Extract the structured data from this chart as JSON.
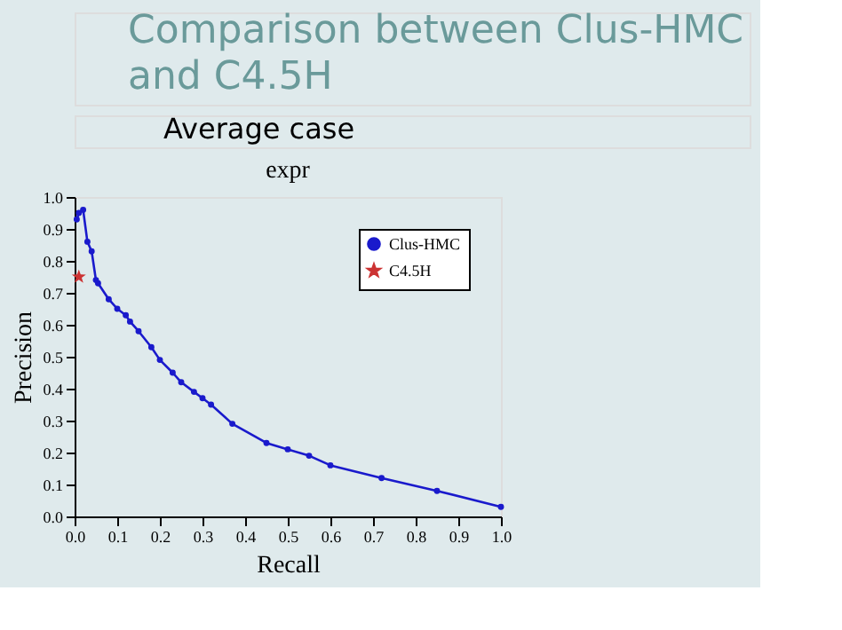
{
  "chart_data": {
    "type": "line",
    "title": "expr",
    "xlabel": "Recall",
    "ylabel": "Precision",
    "annotations": [
      "Comparison between Clus-HMC and C4.5H",
      "Average case"
    ],
    "xlim": [
      0,
      1
    ],
    "ylim": [
      0,
      1
    ],
    "xticks": [
      {
        "value": 0,
        "label": "0.0"
      },
      0.1,
      0.2,
      0.3,
      0.4,
      0.5,
      0.6,
      0.7,
      0.8,
      0.9,
      {
        "value": 1,
        "label": "1.0"
      }
    ],
    "yticks": [
      {
        "value": 0,
        "label": "0.0"
      },
      0.1,
      0.2,
      0.3,
      0.4,
      0.5,
      0.6,
      0.7,
      0.8,
      0.9,
      {
        "value": 1,
        "label": "1.0"
      }
    ],
    "grid": false,
    "legend": "top right",
    "series": [
      {
        "name": "Clus-HMC",
        "color": "#1a1acc",
        "marker": "circle",
        "x": [
          0.005,
          0.01,
          0.02,
          0.03,
          0.04,
          0.05,
          0.055,
          0.08,
          0.1,
          0.12,
          0.13,
          0.15,
          0.18,
          0.2,
          0.23,
          0.25,
          0.28,
          0.3,
          0.32,
          0.37,
          0.45,
          0.5,
          0.55,
          0.6,
          0.72,
          0.85,
          1.0
        ],
        "values": [
          0.93,
          0.95,
          0.96,
          0.86,
          0.83,
          0.74,
          0.73,
          0.68,
          0.65,
          0.63,
          0.61,
          0.58,
          0.53,
          0.49,
          0.45,
          0.42,
          0.39,
          0.37,
          0.35,
          0.29,
          0.23,
          0.21,
          0.19,
          0.16,
          0.12,
          0.08,
          0.03
        ]
      },
      {
        "name": "C4.5H",
        "color": "#cc3333",
        "type": "scatter",
        "marker": "star",
        "x": [
          0.01
        ],
        "values": [
          0.75
        ]
      }
    ]
  }
}
